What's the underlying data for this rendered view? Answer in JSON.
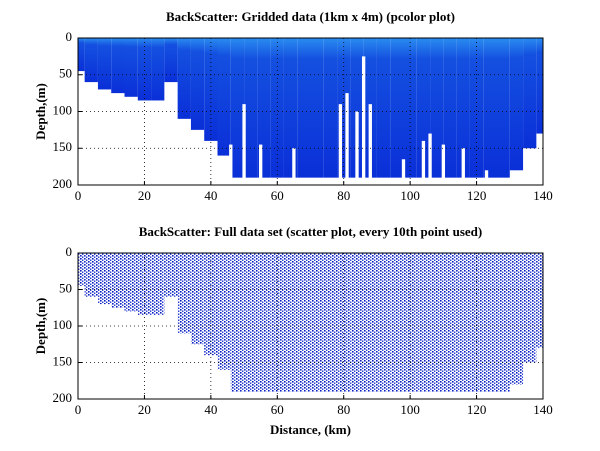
{
  "chart_data": [
    {
      "type": "pcolor",
      "title": "BackScatter: Gridded data (1km x 4m) (pcolor plot)",
      "ylabel": "Depth,(m)",
      "xlim": [
        0,
        140
      ],
      "ylim": [
        0,
        200
      ],
      "reverse_y": true,
      "xticks": [
        0,
        20,
        40,
        60,
        80,
        100,
        120,
        140
      ],
      "yticks": [
        0,
        50,
        100,
        150,
        200
      ],
      "grid": true,
      "color": "#0a2fd8",
      "x": [
        0,
        4,
        8,
        12,
        16,
        20,
        24,
        28,
        32,
        36,
        40,
        44,
        48,
        52,
        56,
        60,
        64,
        68,
        72,
        76,
        80,
        84,
        88,
        92,
        96,
        100,
        104,
        108,
        112,
        116,
        120,
        124,
        128,
        132,
        136,
        140
      ],
      "bottom_depth": [
        45,
        60,
        70,
        75,
        80,
        85,
        85,
        60,
        110,
        125,
        140,
        160,
        190,
        190,
        190,
        190,
        190,
        190,
        190,
        190,
        190,
        190,
        190,
        190,
        190,
        190,
        190,
        190,
        190,
        190,
        190,
        190,
        190,
        180,
        150,
        130
      ],
      "gaps": {
        "x": [
          46,
          50,
          55,
          65,
          79,
          81,
          84,
          86,
          88,
          98,
          104,
          106,
          110,
          116,
          123
        ],
        "top": [
          145,
          90,
          145,
          150,
          90,
          75,
          100,
          25,
          90,
          165,
          140,
          130,
          145,
          150,
          180
        ]
      }
    },
    {
      "type": "scatter",
      "title": "BackScatter: Full data set (scatter plot, every 10th point used)",
      "ylabel": "Depth,(m)",
      "xlabel": "Distance, (km)",
      "xlim": [
        0,
        140
      ],
      "ylim": [
        0,
        200
      ],
      "reverse_y": true,
      "xticks": [
        0,
        20,
        40,
        60,
        80,
        100,
        120,
        140
      ],
      "yticks": [
        0,
        50,
        100,
        150,
        200
      ],
      "grid": true,
      "color": "#0a1fc0",
      "x": [
        0,
        4,
        8,
        12,
        16,
        20,
        24,
        28,
        32,
        36,
        40,
        44,
        48,
        52,
        56,
        60,
        64,
        68,
        72,
        76,
        80,
        84,
        88,
        92,
        96,
        100,
        104,
        108,
        112,
        116,
        120,
        124,
        128,
        132,
        136,
        140
      ],
      "bottom_depth": [
        45,
        60,
        70,
        75,
        80,
        85,
        85,
        60,
        110,
        125,
        140,
        160,
        190,
        190,
        190,
        190,
        190,
        190,
        190,
        190,
        190,
        190,
        190,
        190,
        190,
        190,
        190,
        190,
        190,
        190,
        190,
        190,
        190,
        180,
        150,
        130
      ]
    }
  ]
}
